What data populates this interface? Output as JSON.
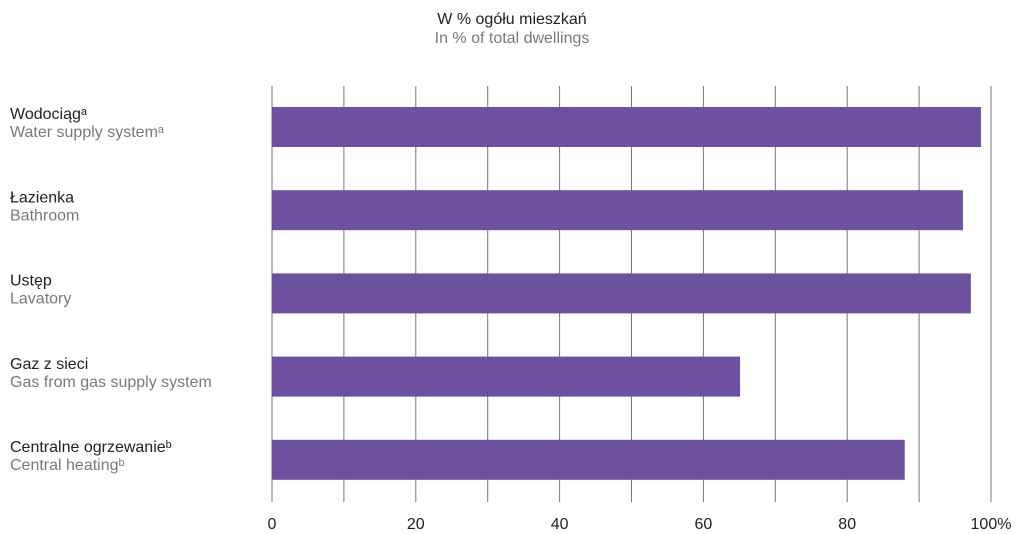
{
  "chart_data": {
    "type": "barh",
    "title": "W % ogółu mieszkań",
    "subtitle": "In % of total dwellings",
    "categories": [
      "Wodociągᵃ",
      "Łazienka",
      "Ustęp",
      "Gaz z sieci",
      "Centralne ogrzewanieᵇ"
    ],
    "categories_en": [
      "Water supply systemᵃ",
      "Bathroom",
      "Lavatory",
      "Gas from gas supply system",
      "Central heatingᵇ"
    ],
    "values": [
      98.6,
      96.1,
      97.2,
      65.1,
      88.0
    ],
    "color": "#6b51a0",
    "xlim": [
      0,
      100
    ],
    "xticks": [
      0,
      20,
      40,
      60,
      80,
      {
        "value": 100,
        "label": "100%"
      }
    ],
    "xminorticks": [
      10,
      30,
      50,
      70,
      90
    ],
    "grid": true
  }
}
